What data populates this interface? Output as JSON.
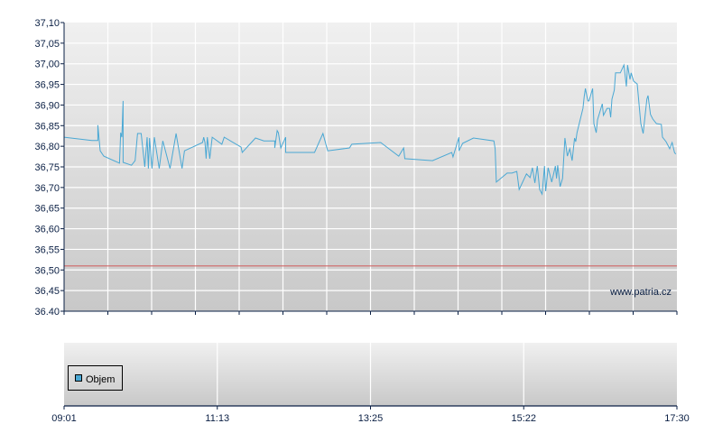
{
  "chart_data": [
    {
      "type": "line",
      "panel": "price",
      "ylim": [
        36.4,
        37.1
      ],
      "y_ticks": [
        "37,10",
        "37,05",
        "37,00",
        "36,95",
        "36,90",
        "36,85",
        "36,80",
        "36,75",
        "36,70",
        "36,65",
        "36,60",
        "36,55",
        "36,50",
        "36,45",
        "36.40"
      ],
      "x_range": [
        "09:01",
        "17:30"
      ],
      "grid": true,
      "line_color": "#4aa8d4",
      "reference_line": {
        "value": 36.51,
        "color": "#d06060"
      },
      "watermark": "www.patria.cz",
      "points": [
        [
          "09:01",
          36.822
        ],
        [
          "09:24",
          36.814
        ],
        [
          "09:29",
          36.814
        ],
        [
          "09:29",
          36.851
        ],
        [
          "09:31",
          36.789
        ],
        [
          "09:34",
          36.776
        ],
        [
          "09:47",
          36.759
        ],
        [
          "09:48",
          36.833
        ],
        [
          "09:49",
          36.822
        ],
        [
          "09:50",
          36.91
        ],
        [
          "09:50",
          36.761
        ],
        [
          "09:57",
          36.754
        ],
        [
          "10:00",
          36.765
        ],
        [
          "10:02",
          36.831
        ],
        [
          "10:05",
          36.831
        ],
        [
          "10:08",
          36.75
        ],
        [
          "10:10",
          36.822
        ],
        [
          "10:11",
          36.746
        ],
        [
          "10:12",
          36.82
        ],
        [
          "10:14",
          36.746
        ],
        [
          "10:16",
          36.822
        ],
        [
          "10:20",
          36.746
        ],
        [
          "10:23",
          36.813
        ],
        [
          "10:29",
          36.746
        ],
        [
          "10:34",
          36.831
        ],
        [
          "10:39",
          36.746
        ],
        [
          "10:41",
          36.789
        ],
        [
          "10:56",
          36.809
        ],
        [
          "10:57",
          36.822
        ],
        [
          "10:58",
          36.809
        ],
        [
          "10:59",
          36.77
        ],
        [
          "11:00",
          36.822
        ],
        [
          "11:02",
          36.77
        ],
        [
          "11:04",
          36.822
        ],
        [
          "11:12",
          36.805
        ],
        [
          "11:14",
          36.822
        ],
        [
          "11:28",
          36.798
        ],
        [
          "11:29",
          36.785
        ],
        [
          "11:40",
          36.82
        ],
        [
          "11:47",
          36.813
        ],
        [
          "11:56",
          36.813
        ],
        [
          "11:56",
          36.796
        ],
        [
          "11:58",
          36.838
        ],
        [
          "11:59",
          36.833
        ],
        [
          "12:01",
          36.796
        ],
        [
          "12:05",
          36.822
        ],
        [
          "12:05",
          36.785
        ],
        [
          "12:29",
          36.785
        ],
        [
          "12:36",
          36.831
        ],
        [
          "12:40",
          36.789
        ],
        [
          "12:58",
          36.796
        ],
        [
          "13:00",
          36.805
        ],
        [
          "13:24",
          36.809
        ],
        [
          "13:39",
          36.776
        ],
        [
          "13:43",
          36.796
        ],
        [
          "13:44",
          36.77
        ],
        [
          "14:07",
          36.765
        ],
        [
          "14:23",
          36.785
        ],
        [
          "14:24",
          36.774
        ],
        [
          "14:29",
          36.822
        ],
        [
          "14:29",
          36.789
        ],
        [
          "14:32",
          36.807
        ],
        [
          "14:41",
          36.82
        ],
        [
          "14:58",
          36.813
        ],
        [
          "14:59",
          36.794
        ],
        [
          "15:00",
          36.713
        ],
        [
          "15:09",
          36.735
        ],
        [
          "15:13",
          36.735
        ],
        [
          "15:17",
          36.739
        ],
        [
          "15:19",
          36.695
        ],
        [
          "15:25",
          36.733
        ],
        [
          "15:28",
          36.724
        ],
        [
          "15:30",
          36.748
        ],
        [
          "15:32",
          36.711
        ],
        [
          "15:34",
          36.752
        ],
        [
          "15:36",
          36.695
        ],
        [
          "15:38",
          36.684
        ],
        [
          "15:40",
          36.752
        ],
        [
          "15:41",
          36.691
        ],
        [
          "15:43",
          36.748
        ],
        [
          "15:46",
          36.713
        ],
        [
          "15:49",
          36.752
        ],
        [
          "15:50",
          36.722
        ],
        [
          "15:51",
          36.754
        ],
        [
          "15:53",
          36.702
        ],
        [
          "15:55",
          36.722
        ],
        [
          "15:57",
          36.82
        ],
        [
          "15:59",
          36.776
        ],
        [
          "16:01",
          36.794
        ],
        [
          "16:03",
          36.765
        ],
        [
          "16:05",
          36.82
        ],
        [
          "16:06",
          36.811
        ],
        [
          "16:07",
          36.833
        ],
        [
          "16:12",
          36.892
        ],
        [
          "16:13",
          36.921
        ],
        [
          "16:14",
          36.94
        ],
        [
          "16:16",
          36.91
        ],
        [
          "16:17",
          36.91
        ],
        [
          "16:20",
          36.94
        ],
        [
          "16:21",
          36.855
        ],
        [
          "16:23",
          36.833
        ],
        [
          "16:24",
          36.864
        ],
        [
          "16:28",
          36.903
        ],
        [
          "16:29",
          36.875
        ],
        [
          "16:32",
          36.892
        ],
        [
          "16:34",
          36.892
        ],
        [
          "16:35",
          36.87
        ],
        [
          "16:36",
          36.914
        ],
        [
          "16:38",
          36.936
        ],
        [
          "16:39",
          36.978
        ],
        [
          "16:43",
          36.978
        ],
        [
          "16:46",
          36.997
        ],
        [
          "16:48",
          36.945
        ],
        [
          "16:49",
          36.997
        ],
        [
          "16:51",
          36.962
        ],
        [
          "16:52",
          36.978
        ],
        [
          "16:54",
          36.958
        ],
        [
          "16:57",
          36.951
        ],
        [
          "17:00",
          36.855
        ],
        [
          "17:02",
          36.831
        ],
        [
          "17:05",
          36.914
        ],
        [
          "17:06",
          36.923
        ],
        [
          "17:08",
          36.877
        ],
        [
          "17:10",
          36.866
        ],
        [
          "17:13",
          36.855
        ],
        [
          "17:17",
          36.853
        ],
        [
          "17:18",
          36.822
        ],
        [
          "17:21",
          36.811
        ],
        [
          "17:24",
          36.794
        ],
        [
          "17:26",
          36.809
        ],
        [
          "17:28",
          36.785
        ],
        [
          "17:29",
          36.781
        ]
      ]
    },
    {
      "type": "bar",
      "panel": "volume",
      "legend": [
        {
          "label": "Objem",
          "color": "#4aa8d4"
        }
      ],
      "legend_placement": "left",
      "x_ticks": [
        "09:01",
        "11:13",
        "13:25",
        "15:22",
        "17:30"
      ],
      "grid": true
    }
  ]
}
